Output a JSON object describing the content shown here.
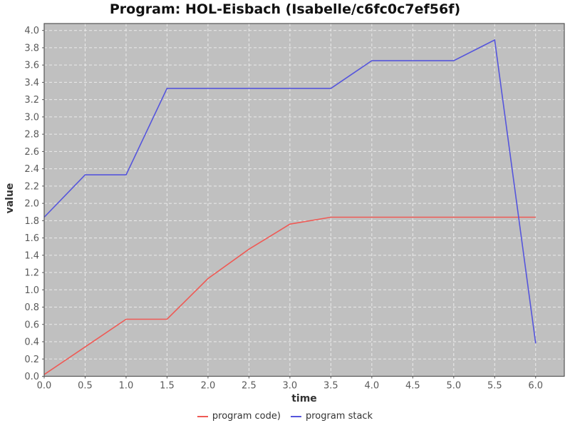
{
  "chart_data": {
    "type": "line",
    "title": "Program: HOL-Eisbach (Isabelle/c6fc0c7ef56f)",
    "xlabel": "time",
    "ylabel": "value",
    "x": [
      0,
      0.5,
      1.0,
      1.5,
      2.0,
      2.5,
      3.0,
      3.5,
      4.0,
      4.5,
      5.0,
      5.5,
      6.0
    ],
    "series": [
      {
        "name": "program code)",
        "color": "#ef5a55",
        "values": [
          0.02,
          0.34,
          0.66,
          0.66,
          1.13,
          1.47,
          1.76,
          1.84,
          1.84,
          1.84,
          1.84,
          1.84,
          1.84
        ]
      },
      {
        "name": "program stack",
        "color": "#5555dc",
        "values": [
          1.84,
          2.33,
          2.33,
          3.33,
          3.33,
          3.33,
          3.33,
          3.33,
          3.65,
          3.65,
          3.65,
          3.89,
          0.38
        ]
      }
    ],
    "xlim": [
      0,
      6.35
    ],
    "ylim": [
      0,
      4.08
    ],
    "x_ticks": [
      0,
      0.5,
      1.0,
      1.5,
      2.0,
      2.5,
      3.0,
      3.5,
      4.0,
      4.5,
      5.0,
      5.5,
      6.0
    ],
    "y_ticks": [
      0,
      0.2,
      0.4,
      0.6,
      0.8,
      1.0,
      1.2,
      1.4,
      1.6,
      1.8,
      2.0,
      2.2,
      2.4,
      2.6,
      2.8,
      3.0,
      3.2,
      3.4,
      3.6,
      3.8,
      4.0
    ],
    "grid": "dashed",
    "legend_position": "bottom",
    "plot_bg": "#c0c0c0",
    "grid_color": "#ebebeb",
    "axis_color": "#545454",
    "tick_label_color": "#5a5a5a"
  }
}
